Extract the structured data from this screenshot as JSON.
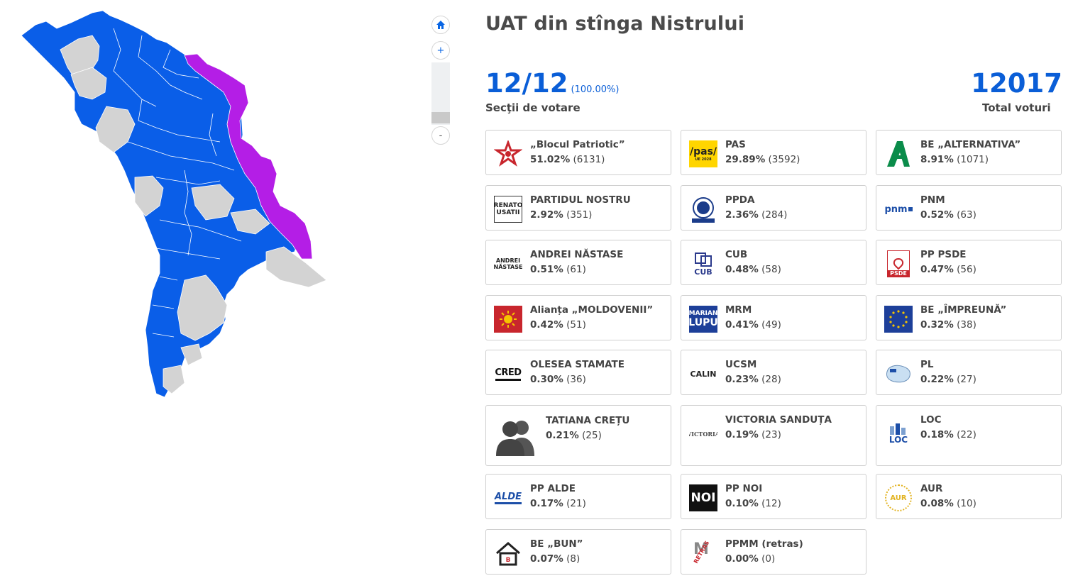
{
  "title": "UAT din stînga Nistrului",
  "sections": {
    "value": "12/12",
    "percent": "(100.00%)",
    "label": "Secţii de votare"
  },
  "total": {
    "value": "12017",
    "label": "Total voturi"
  },
  "zoom": {
    "home": "⌂",
    "plus": "+",
    "minus": "-"
  },
  "colors": {
    "blue": "#0a5ee8",
    "gray": "#d3d3d3",
    "purple": "#b41ee6",
    "accent": "#0a5ed7"
  },
  "parties": [
    {
      "name": "„Blocul Patriotic”",
      "pct": "51.02%",
      "votes": "(6131)",
      "logo": "red-star-logo"
    },
    {
      "name": "PAS",
      "pct": "29.89%",
      "votes": "(3592)",
      "logo": "pas-logo"
    },
    {
      "name": "BE „ALTERNATIVA”",
      "pct": "8.91%",
      "votes": "(1071)",
      "logo": "alternativa-logo"
    },
    {
      "name": "PARTIDUL NOSTRU",
      "pct": "2.92%",
      "votes": "(351)",
      "logo": "renato-usatii-logo"
    },
    {
      "name": "PPDA",
      "pct": "2.36%",
      "votes": "(284)",
      "logo": "ppda-logo"
    },
    {
      "name": "PNM",
      "pct": "0.52%",
      "votes": "(63)",
      "logo": "pnm-logo"
    },
    {
      "name": "ANDREI NĂSTASE",
      "pct": "0.51%",
      "votes": "(61)",
      "logo": "andrei-nastase-logo"
    },
    {
      "name": "CUB",
      "pct": "0.48%",
      "votes": "(58)",
      "logo": "cub-logo"
    },
    {
      "name": "PP PSDE",
      "pct": "0.47%",
      "votes": "(56)",
      "logo": "psde-logo"
    },
    {
      "name": "Alianța „MOLDOVENII”",
      "pct": "0.42%",
      "votes": "(51)",
      "logo": "moldovenii-logo"
    },
    {
      "name": "MRM",
      "pct": "0.41%",
      "votes": "(49)",
      "logo": "marian-lupu-logo"
    },
    {
      "name": "BE „ÎMPREUNĂ”",
      "pct": "0.32%",
      "votes": "(38)",
      "logo": "impreuna-logo"
    },
    {
      "name": "OLESEA STAMATE",
      "pct": "0.30%",
      "votes": "(36)",
      "logo": "cred-logo"
    },
    {
      "name": "UCSM",
      "pct": "0.23%",
      "votes": "(28)",
      "logo": "calin-logo"
    },
    {
      "name": "PL",
      "pct": "0.22%",
      "votes": "(27)",
      "logo": "pl-logo"
    },
    {
      "name": "TATIANA CREȚU",
      "pct": "0.21%",
      "votes": "(25)",
      "logo": "person-silhouette-icon"
    },
    {
      "name": "VICTORIA SANDUȚA",
      "pct": "0.19%",
      "votes": "(23)",
      "logo": "victoria-logo"
    },
    {
      "name": "LOC",
      "pct": "0.18%",
      "votes": "(22)",
      "logo": "loc-logo"
    },
    {
      "name": "PP ALDE",
      "pct": "0.17%",
      "votes": "(21)",
      "logo": "alde-logo"
    },
    {
      "name": "PP NOI",
      "pct": "0.10%",
      "votes": "(12)",
      "logo": "noi-logo"
    },
    {
      "name": "AUR",
      "pct": "0.08%",
      "votes": "(10)",
      "logo": "aur-logo"
    },
    {
      "name": "BE „BUN”",
      "pct": "0.07%",
      "votes": "(8)",
      "logo": "bun-logo"
    },
    {
      "name": "PPMM (retras)",
      "pct": "0.00%",
      "votes": "(0)",
      "logo": "ppmm-logo"
    }
  ],
  "logo_text": {
    "pas": "/pas/",
    "pas_sub": "UE 2028",
    "renato1": "RENATO",
    "renato2": "USATII",
    "andrei1": "ANDREI",
    "andrei2": "NĂSTASE",
    "cub": "CUB",
    "psde": "PSDE",
    "marian": "MARIAN",
    "lupu": "LUPU",
    "cred": "CRED",
    "calin": "CALIN",
    "victoria": "VICTORIA",
    "loc": "LOC",
    "alde": "ALDE",
    "noi": "NOI",
    "aur": "AUR",
    "ppmm": "RETRAS",
    "pnm": "pnm"
  }
}
